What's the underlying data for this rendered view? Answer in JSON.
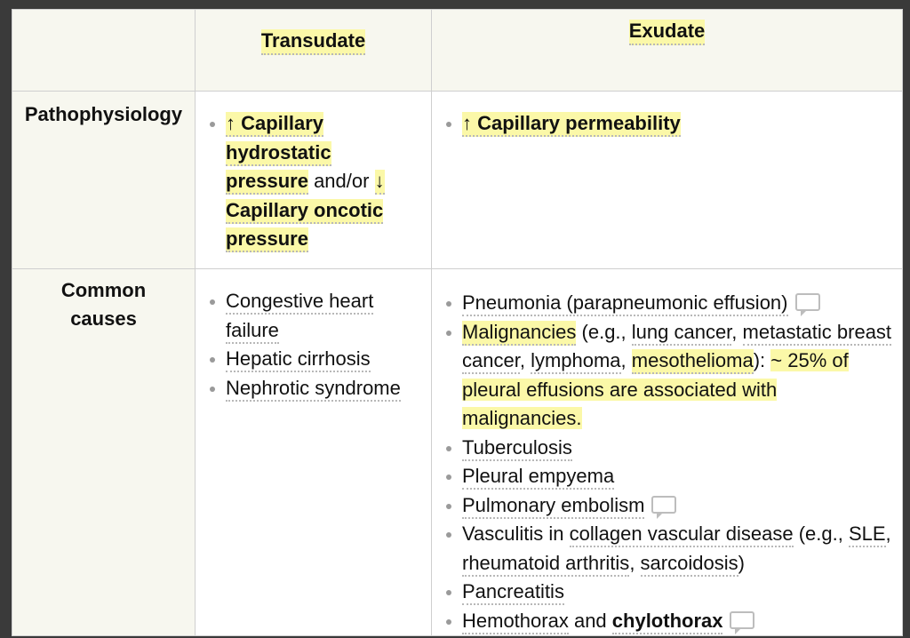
{
  "headers": [
    "",
    "Transudate",
    "Exudate"
  ],
  "rows": [
    {
      "label": "Pathophysiology",
      "transudate": [
        {
          "parts": [
            "↑ Capillary hydrostatic pressure",
            " and/or ",
            "↓ Capillary oncotic pressure"
          ]
        }
      ],
      "exudate": [
        {
          "parts": [
            "↑ Capillary permeability"
          ]
        }
      ]
    },
    {
      "label": "Common causes",
      "transudate": [
        {
          "text": "Congestive heart failure"
        },
        {
          "text": "Hepatic cirrhosis"
        },
        {
          "text": "Nephrotic syndrome"
        }
      ],
      "exudate": [
        {
          "text": "Pneumonia (parapneumonic effusion)",
          "icon": "comment-icon"
        },
        {
          "parts": [
            "Malignancies",
            " (e.g., ",
            "lung cancer",
            ", ",
            "metastatic breast cancer",
            ", ",
            "lymphoma",
            ", ",
            "mesothelioma",
            "): ",
            "~ 25% of pleural effusions are associated with malignancies."
          ]
        },
        {
          "text": "Tuberculosis"
        },
        {
          "text": "Pleural empyema"
        },
        {
          "text": "Pulmonary embolism",
          "icon": "comment-icon"
        },
        {
          "parts": [
            "Vasculitis in ",
            "collagen vascular disease",
            " (e.g., ",
            "SLE",
            ", ",
            "rheumatoid arthritis",
            ", ",
            "sarcoidosis",
            ")"
          ]
        },
        {
          "text": "Pancreatitis"
        },
        {
          "parts": [
            "Hemothorax",
            " and ",
            "chylothorax"
          ],
          "icon": "comment-icon"
        }
      ]
    }
  ],
  "colors": {
    "highlight": "#fbf8a8",
    "header_bg": "#f7f7ef",
    "border": "#cfcfcf"
  }
}
